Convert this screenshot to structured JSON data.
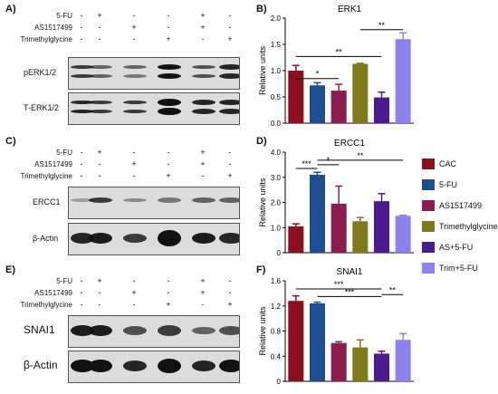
{
  "panels": {
    "A": "A)",
    "B": "B)",
    "C": "C)",
    "D": "D)",
    "E": "E)",
    "F": "F)"
  },
  "treatments": {
    "fu": "5-FU",
    "as": "AS1517499",
    "tm": "Trimethylglycine"
  },
  "signs": {
    "fu": [
      "-",
      "+",
      "-",
      "-",
      "+",
      "-"
    ],
    "as": [
      "-",
      "-",
      "+",
      "-",
      "+",
      "-"
    ],
    "tm": [
      "-",
      "-",
      "-",
      "+",
      "-",
      "+"
    ]
  },
  "blots": {
    "A": [
      "pERK1/2",
      "T-ERK1/2"
    ],
    "C": [
      "ERCC1",
      "β-Actin"
    ],
    "E": [
      "SNAI1",
      "β-Actin"
    ]
  },
  "legend": [
    {
      "label": "CAC",
      "color": "#8b0f1e"
    },
    {
      "label": "5-FU",
      "color": "#1d4e8f"
    },
    {
      "label": "AS1517499",
      "color": "#8b1d50"
    },
    {
      "label": "Trimethylglycine",
      "color": "#7f7a1c"
    },
    {
      "label": "AS+5-FU",
      "color": "#4b1a8c"
    },
    {
      "label": "Trim+5-FU",
      "color": "#8c82ee"
    }
  ],
  "chart_data": [
    {
      "panel": "B",
      "type": "bar",
      "title": "ERK1",
      "ylabel": "Relative units",
      "ylim": [
        0,
        2.0
      ],
      "yticks": [
        "0.0",
        "0.5",
        "1.0",
        "1.5",
        "2.0"
      ],
      "values": [
        1.0,
        0.72,
        0.62,
        1.13,
        0.49,
        1.6
      ],
      "errors": [
        0.1,
        0.05,
        0.12,
        0.01,
        0.1,
        0.12
      ],
      "sig": [
        {
          "text": "*",
          "from": 0,
          "to": 2,
          "y": 0.85
        },
        {
          "text": "**",
          "from": 0,
          "to": 4,
          "y": 1.27
        },
        {
          "text": "**",
          "from": 3,
          "to": 5,
          "y": 1.78
        }
      ]
    },
    {
      "panel": "D",
      "type": "bar",
      "title": "ERCC1",
      "ylabel": "Relative units",
      "ylim": [
        0,
        4
      ],
      "yticks": [
        "0",
        "1.0",
        "2.0",
        "3.0",
        "4.0"
      ],
      "values": [
        1.05,
        3.1,
        1.95,
        1.25,
        2.05,
        1.47
      ],
      "errors": [
        0.1,
        0.1,
        0.7,
        0.15,
        0.3,
        0.02
      ],
      "sig": [
        {
          "text": "***",
          "from": 0,
          "to": 1,
          "y": 3.35
        },
        {
          "text": "*",
          "from": 1,
          "to": 2,
          "y": 3.5
        },
        {
          "text": "**",
          "from": 1,
          "to": 5,
          "y": 3.68
        }
      ]
    },
    {
      "panel": "F",
      "type": "bar",
      "title": "SNAI1",
      "ylabel": "Relative units",
      "ylim": [
        0,
        1.6
      ],
      "yticks": [
        "0",
        "0.4",
        "0.8",
        "1.2",
        "1.6"
      ],
      "values": [
        1.28,
        1.24,
        0.61,
        0.54,
        0.44,
        0.66
      ],
      "errors": [
        0.08,
        0.02,
        0.02,
        0.12,
        0.04,
        0.1
      ],
      "sig": [
        {
          "text": "***",
          "from": 0,
          "to": 4,
          "y": 1.47
        },
        {
          "text": "***",
          "from": 1,
          "to": 4,
          "y": 1.35
        },
        {
          "text": "**",
          "from": 4,
          "to": 5,
          "y": 1.38
        }
      ]
    }
  ]
}
